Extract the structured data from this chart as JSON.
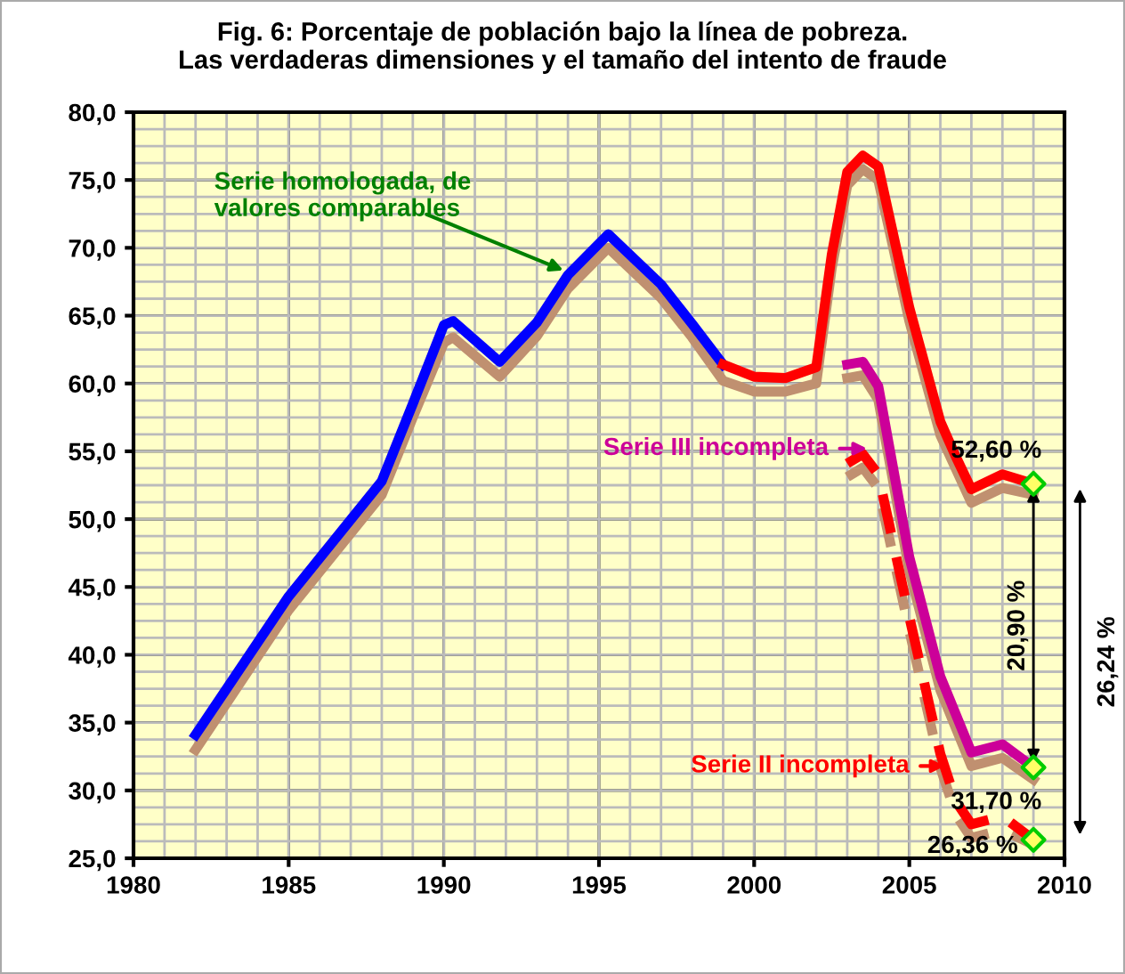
{
  "chart_data": {
    "type": "line",
    "title": "Fig. 6: Porcentaje de población bajo la línea de pobreza.\nLas verdaderas dimensiones y el tamaño del intento de fraude",
    "xlim": [
      1980,
      2010
    ],
    "xticks": [
      1980,
      1985,
      1990,
      1995,
      2000,
      2005,
      2010
    ],
    "ylim": [
      25,
      80
    ],
    "yticks": [
      {
        "value": 25,
        "label": "25,0"
      },
      {
        "value": 30,
        "label": "30,0"
      },
      {
        "value": 35,
        "label": "35,0"
      },
      {
        "value": 40,
        "label": "40,0"
      },
      {
        "value": 45,
        "label": "45,0"
      },
      {
        "value": 50,
        "label": "50,0"
      },
      {
        "value": 55,
        "label": "55,0"
      },
      {
        "value": 60,
        "label": "60,0"
      },
      {
        "value": 65,
        "label": "65,0"
      },
      {
        "value": 70,
        "label": "70,0"
      },
      {
        "value": 75,
        "label": "75,0"
      },
      {
        "value": 80,
        "label": "80,0"
      }
    ],
    "grid": true,
    "legend": false,
    "series": [
      {
        "color": "#c09070",
        "x": [
          1982,
          1985,
          1988,
          1989,
          1990,
          1990.3,
          1991.8,
          1993,
          1994,
          1995.3,
          1997,
          1998,
          1999,
          2000,
          2001,
          2002,
          2002.5,
          2003,
          2003.5,
          2004,
          2005,
          2006,
          2007,
          2008,
          2009
        ],
        "values": [
          33.0,
          43.3,
          51.8,
          57.5,
          63.0,
          63.4,
          60.5,
          63.5,
          67.0,
          70.0,
          66.3,
          63.4,
          60.2,
          59.4,
          59.4,
          60.0,
          68.5,
          74.6,
          75.8,
          75.0,
          64.6,
          56.2,
          51.2,
          52.3,
          51.8
        ]
      },
      {
        "color": "#c09070",
        "x": [
          2003,
          2003.5,
          2004,
          2005,
          2006,
          2007,
          2008,
          2009
        ],
        "values": [
          60.4,
          60.6,
          58.8,
          46.2,
          37.4,
          31.8,
          32.4,
          30.8
        ]
      },
      {
        "color": "#c09070",
        "line_style": "dashed",
        "x": [
          2003,
          2003.5,
          2004,
          2005,
          2006,
          2006.5,
          2007,
          2008,
          2009
        ],
        "values": [
          53.1,
          53.8,
          52.3,
          41.8,
          31.7,
          28.2,
          26.5,
          27.1,
          26.0
        ]
      },
      {
        "color": "#0000ff",
        "x": [
          1982,
          1985,
          1988,
          1989,
          1990,
          1990.3,
          1991.8,
          1993,
          1994,
          1995.3,
          1997,
          1998,
          1999
        ],
        "values": [
          34.1,
          44.3,
          52.8,
          58.5,
          64.3,
          64.6,
          61.6,
          64.5,
          68.0,
          71.0,
          67.3,
          64.4,
          61.4
        ]
      },
      {
        "color": "#ff0000",
        "x": [
          1999,
          2000,
          2001,
          2002,
          2002.5,
          2003,
          2003.5,
          2004,
          2005,
          2006,
          2006.5,
          2007,
          2008,
          2009
        ],
        "values": [
          61.4,
          60.5,
          60.4,
          61.2,
          69.5,
          75.6,
          76.8,
          76.0,
          65.6,
          57.2,
          54.6,
          52.2,
          53.3,
          52.6
        ]
      },
      {
        "color": "#cc0099",
        "x": [
          2003,
          2003.5,
          2004,
          2005,
          2006,
          2007,
          2008,
          2009
        ],
        "values": [
          61.4,
          61.6,
          59.8,
          47.2,
          38.4,
          32.8,
          33.4,
          31.7
        ]
      },
      {
        "color": "#ff0000",
        "line_style": "dashed",
        "x": [
          2003,
          2003.5,
          2004,
          2005,
          2006,
          2006.5,
          2007,
          2008,
          2009
        ],
        "values": [
          54.1,
          54.8,
          53.3,
          42.8,
          32.7,
          29.2,
          27.5,
          28.1,
          26.36
        ]
      },
      {
        "type": "scatter",
        "color": "#00cc00",
        "marker": "diamond",
        "x": [
          2009,
          2009,
          2009
        ],
        "values": [
          52.6,
          31.7,
          26.36
        ]
      }
    ],
    "annotations": [
      {
        "text": "Serie homologada, de valores comparables",
        "x": 1994,
        "y": 68.2
      },
      {
        "text": "Serie III incompleta",
        "x": 2003.8,
        "y": 55.2
      },
      {
        "text": "Serie II incompleta",
        "x": 2006.3,
        "y": 31.8
      },
      {
        "text": "52,60 %",
        "x": 2009,
        "y": 52.6
      },
      {
        "text": "31,70 %",
        "x": 2009,
        "y": 31.7
      },
      {
        "text": "26,36 %",
        "x": 2009,
        "y": 26.36
      },
      "20,90 %",
      "26,24 %"
    ]
  }
}
